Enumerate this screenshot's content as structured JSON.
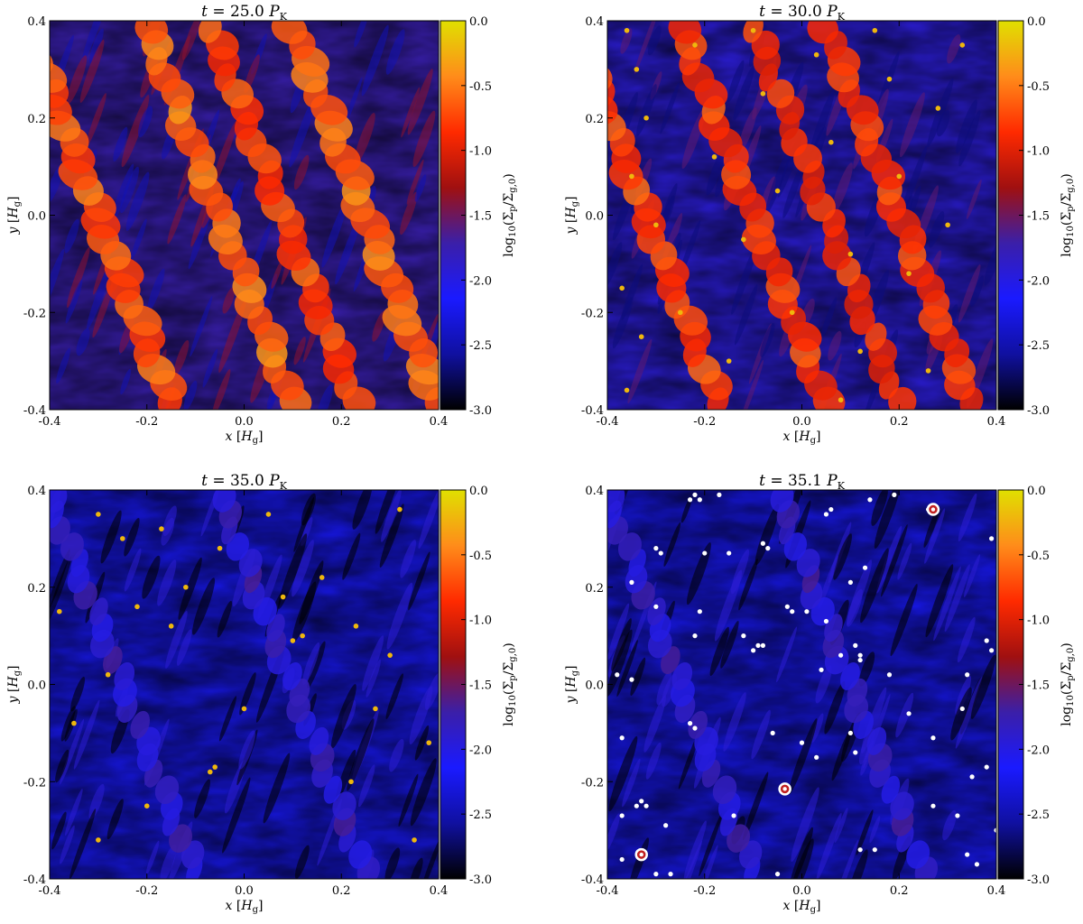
{
  "figure": {
    "colormap": [
      "#000000",
      "#1010a0",
      "#1a1aff",
      "#3b1fa8",
      "#a01010",
      "#ff2a00",
      "#ff8c1a",
      "#e0e000"
    ],
    "colors": {
      "particle_clump": "#ffffff",
      "hill_ring": "#c02020",
      "frame": "#000000"
    }
  },
  "chart_data": [
    {
      "type": "heatmap",
      "title": "t = 25.0 P_K",
      "title_parts": {
        "var": "t",
        "eq": " = 25.0 ",
        "sym": "P",
        "sub": "K"
      },
      "xlabel": "x [H_g]",
      "ylabel": "y [H_g]",
      "xlim": [
        -0.4,
        0.4
      ],
      "ylim": [
        -0.4,
        0.4
      ],
      "x_ticks": [
        -0.4,
        -0.2,
        0.0,
        0.2,
        0.4
      ],
      "y_ticks": [
        -0.4,
        -0.2,
        0.0,
        0.2,
        0.4
      ],
      "x_tick_labels": [
        "-0.4",
        "-0.2",
        "0.0",
        "0.2",
        "0.4"
      ],
      "y_tick_labels": [
        "-0.4",
        "-0.2",
        "0.0",
        "0.2",
        "0.4"
      ],
      "colorbar": {
        "label": "log10(Σp/Σg,0)",
        "range": [
          -3.0,
          0.0
        ],
        "ticks": [
          0.0,
          -0.5,
          -1.0,
          -1.5,
          -2.0,
          -2.5,
          -3.0
        ],
        "tick_labels": [
          "0.0",
          "-0.5",
          "-1.0",
          "-1.5",
          "-2.0",
          "-2.5",
          "-3.0"
        ]
      },
      "background_level": 0.42,
      "filaments": [
        {
          "x": -0.3,
          "slope": 2.6,
          "width": 0.035,
          "level": 0.85
        },
        {
          "x": -0.05,
          "slope": 2.6,
          "width": 0.03,
          "level": 0.88
        },
        {
          "x": 0.08,
          "slope": 2.6,
          "width": 0.03,
          "level": 0.82
        },
        {
          "x": 0.25,
          "slope": 2.6,
          "width": 0.035,
          "level": 0.88
        }
      ],
      "clumps": [],
      "white_points": false,
      "hill_circles": []
    },
    {
      "type": "heatmap",
      "title": "t = 30.0 P_K",
      "title_parts": {
        "var": "t",
        "eq": " = 30.0 ",
        "sym": "P",
        "sub": "K"
      },
      "xlabel": "x [H_g]",
      "ylabel": "y [H_g]",
      "xlim": [
        -0.4,
        0.4
      ],
      "ylim": [
        -0.4,
        0.4
      ],
      "x_ticks": [
        -0.4,
        -0.2,
        0.0,
        0.2,
        0.4
      ],
      "y_ticks": [
        -0.4,
        -0.2,
        0.0,
        0.2,
        0.4
      ],
      "x_tick_labels": [
        "-0.4",
        "-0.2",
        "0.0",
        "0.2",
        "0.4"
      ],
      "y_tick_labels": [
        "-0.4",
        "-0.2",
        "0.0",
        "0.2",
        "0.4"
      ],
      "colorbar": {
        "label": "log10(Σp/Σg,0)",
        "range": [
          -3.0,
          0.0
        ],
        "ticks": [
          0.0,
          -0.5,
          -1.0,
          -1.5,
          -2.0,
          -2.5,
          -3.0
        ],
        "tick_labels": [
          "0.0",
          "-0.5",
          "-1.0",
          "-1.5",
          "-2.0",
          "-2.5",
          "-3.0"
        ]
      },
      "background_level": 0.36,
      "filaments": [
        {
          "x": -0.32,
          "slope": 2.6,
          "width": 0.03,
          "level": 0.82
        },
        {
          "x": -0.1,
          "slope": 2.6,
          "width": 0.03,
          "level": 0.8
        },
        {
          "x": 0.05,
          "slope": 2.6,
          "width": 0.025,
          "level": 0.78
        },
        {
          "x": 0.2,
          "slope": 2.6,
          "width": 0.03,
          "level": 0.8
        }
      ],
      "clumps": [
        [
          -0.36,
          0.38
        ],
        [
          -0.34,
          0.3
        ],
        [
          -0.32,
          0.2
        ],
        [
          -0.35,
          0.08
        ],
        [
          -0.3,
          -0.02
        ],
        [
          -0.37,
          -0.15
        ],
        [
          -0.33,
          -0.25
        ],
        [
          -0.36,
          -0.36
        ],
        [
          -0.22,
          0.35
        ],
        [
          -0.18,
          0.12
        ],
        [
          -0.12,
          -0.05
        ],
        [
          -0.15,
          -0.3
        ],
        [
          -0.08,
          0.25
        ],
        [
          -0.05,
          0.05
        ],
        [
          -0.02,
          -0.2
        ],
        [
          0.03,
          0.33
        ],
        [
          0.06,
          0.15
        ],
        [
          0.1,
          -0.08
        ],
        [
          0.12,
          -0.28
        ],
        [
          0.18,
          0.28
        ],
        [
          0.2,
          0.08
        ],
        [
          0.22,
          -0.12
        ],
        [
          0.26,
          -0.32
        ],
        [
          0.28,
          0.22
        ],
        [
          0.3,
          -0.02
        ],
        [
          0.15,
          0.38
        ],
        [
          -0.25,
          -0.2
        ],
        [
          0.08,
          -0.38
        ],
        [
          -0.1,
          0.38
        ],
        [
          0.33,
          0.35
        ]
      ],
      "white_points": false,
      "hill_circles": []
    },
    {
      "type": "heatmap",
      "title": "t = 35.0 P_K",
      "title_parts": {
        "var": "t",
        "eq": " = 35.0 ",
        "sym": "P",
        "sub": "K"
      },
      "xlabel": "x [H_g]",
      "ylabel": "y [H_g]",
      "xlim": [
        -0.4,
        0.4
      ],
      "ylim": [
        -0.4,
        0.4
      ],
      "x_ticks": [
        -0.4,
        -0.2,
        0.0,
        0.2,
        0.4
      ],
      "y_ticks": [
        -0.4,
        -0.2,
        0.0,
        0.2,
        0.4
      ],
      "x_tick_labels": [
        "-0.4",
        "-0.2",
        "0.0",
        "0.2",
        "0.4"
      ],
      "y_tick_labels": [
        "-0.4",
        "-0.2",
        "0.0",
        "0.2",
        "0.4"
      ],
      "colorbar": {
        "label": "log10(Σp/Σg,0)",
        "range": [
          -3.0,
          0.0
        ],
        "ticks": [
          0.0,
          -0.5,
          -1.0,
          -1.5,
          -2.0,
          -2.5,
          -3.0
        ],
        "tick_labels": [
          "0.0",
          "-0.5",
          "-1.0",
          "-1.5",
          "-2.0",
          "-2.5",
          "-3.0"
        ]
      },
      "background_level": 0.24,
      "filaments": [
        {
          "x": -0.25,
          "slope": 2.6,
          "width": 0.02,
          "level": 0.45
        },
        {
          "x": 0.1,
          "slope": 2.6,
          "width": 0.02,
          "level": 0.45
        }
      ],
      "clumps": [
        [
          -0.3,
          0.35
        ],
        [
          -0.25,
          0.3
        ],
        [
          -0.17,
          0.32
        ],
        [
          -0.22,
          0.16
        ],
        [
          -0.15,
          0.12
        ],
        [
          -0.05,
          0.28
        ],
        [
          0.12,
          0.1
        ],
        [
          0.1,
          0.09
        ],
        [
          -0.07,
          -0.18
        ],
        [
          -0.06,
          -0.17
        ],
        [
          0.23,
          0.12
        ],
        [
          0.3,
          0.06
        ],
        [
          0.38,
          -0.12
        ],
        [
          0.35,
          -0.32
        ],
        [
          -0.35,
          -0.08
        ],
        [
          -0.3,
          -0.32
        ],
        [
          -0.12,
          0.2
        ],
        [
          0.0,
          -0.05
        ],
        [
          0.16,
          0.22
        ],
        [
          0.27,
          -0.05
        ],
        [
          -0.38,
          0.15
        ],
        [
          0.05,
          0.35
        ],
        [
          -0.2,
          -0.25
        ],
        [
          0.22,
          -0.2
        ],
        [
          0.32,
          0.36
        ],
        [
          -0.28,
          0.02
        ],
        [
          0.08,
          0.18
        ]
      ],
      "white_points": false,
      "hill_circles": []
    },
    {
      "type": "heatmap",
      "title": "t = 35.1 P_K",
      "title_parts": {
        "var": "t",
        "eq": " = 35.1 ",
        "sym": "P",
        "sub": "K"
      },
      "xlabel": "x [H_g]",
      "ylabel": "y [H_g]",
      "xlim": [
        -0.4,
        0.4
      ],
      "ylim": [
        -0.4,
        0.4
      ],
      "x_ticks": [
        -0.4,
        -0.2,
        0.0,
        0.2,
        0.4
      ],
      "y_ticks": [
        -0.4,
        -0.2,
        0.0,
        0.2,
        0.4
      ],
      "x_tick_labels": [
        "-0.4",
        "-0.2",
        "0.0",
        "0.2",
        "0.4"
      ],
      "y_tick_labels": [
        "-0.4",
        "-0.2",
        "0.0",
        "0.2",
        "0.4"
      ],
      "colorbar": {
        "label": "log10(Σp/Σg,0)",
        "range": [
          -3.0,
          0.0
        ],
        "ticks": [
          0.0,
          -0.5,
          -1.0,
          -1.5,
          -2.0,
          -2.5,
          -3.0
        ],
        "tick_labels": [
          "0.0",
          "-0.5",
          "-1.0",
          "-1.5",
          "-2.0",
          "-2.5",
          "-3.0"
        ]
      },
      "background_level": 0.24,
      "filaments": [
        {
          "x": -0.25,
          "slope": 2.6,
          "width": 0.02,
          "level": 0.45
        },
        {
          "x": 0.1,
          "slope": 2.6,
          "width": 0.02,
          "level": 0.45
        }
      ],
      "clumps": [
        [
          -0.22,
          0.39
        ],
        [
          -0.21,
          0.38
        ],
        [
          -0.23,
          0.38
        ],
        [
          -0.17,
          0.39
        ],
        [
          -0.3,
          0.28
        ],
        [
          -0.29,
          0.27
        ],
        [
          -0.2,
          0.27
        ],
        [
          -0.15,
          0.27
        ],
        [
          -0.08,
          0.29
        ],
        [
          -0.07,
          0.28
        ],
        [
          0.05,
          0.35
        ],
        [
          0.06,
          0.36
        ],
        [
          0.14,
          0.38
        ],
        [
          0.19,
          0.39
        ],
        [
          -0.35,
          0.21
        ],
        [
          -0.3,
          0.16
        ],
        [
          -0.21,
          0.15
        ],
        [
          -0.03,
          0.16
        ],
        [
          -0.02,
          0.15
        ],
        [
          0.01,
          0.15
        ],
        [
          0.05,
          0.13
        ],
        [
          0.1,
          0.21
        ],
        [
          0.13,
          0.24
        ],
        [
          -0.38,
          0.02
        ],
        [
          -0.35,
          0.01
        ],
        [
          -0.22,
          0.1
        ],
        [
          -0.12,
          0.1
        ],
        [
          -0.09,
          0.08
        ],
        [
          -0.08,
          0.08
        ],
        [
          -0.1,
          0.07
        ],
        [
          0.08,
          0.06
        ],
        [
          0.04,
          0.03
        ],
        [
          0.11,
          0.08
        ],
        [
          0.12,
          0.05
        ],
        [
          0.12,
          0.06
        ],
        [
          0.18,
          0.02
        ],
        [
          0.34,
          0.02
        ],
        [
          0.38,
          0.09
        ],
        [
          0.39,
          0.07
        ],
        [
          -0.37,
          -0.11
        ],
        [
          -0.23,
          -0.08
        ],
        [
          -0.22,
          -0.09
        ],
        [
          -0.06,
          -0.1
        ],
        [
          0.0,
          -0.12
        ],
        [
          0.03,
          -0.15
        ],
        [
          0.1,
          -0.1
        ],
        [
          0.11,
          -0.14
        ],
        [
          0.22,
          -0.06
        ],
        [
          0.27,
          -0.11
        ],
        [
          0.33,
          -0.05
        ],
        [
          0.38,
          -0.17
        ],
        [
          0.35,
          -0.19
        ],
        [
          -0.37,
          -0.27
        ],
        [
          -0.34,
          -0.25
        ],
        [
          -0.33,
          -0.24
        ],
        [
          -0.32,
          -0.25
        ],
        [
          -0.28,
          -0.29
        ],
        [
          -0.14,
          -0.27
        ],
        [
          0.27,
          -0.25
        ],
        [
          0.32,
          -0.27
        ],
        [
          -0.37,
          -0.36
        ],
        [
          -0.3,
          -0.39
        ],
        [
          -0.27,
          -0.39
        ],
        [
          -0.05,
          -0.39
        ],
        [
          0.12,
          -0.34
        ],
        [
          0.15,
          -0.34
        ],
        [
          0.34,
          -0.35
        ],
        [
          0.36,
          -0.37
        ],
        [
          0.4,
          -0.3
        ],
        [
          0.39,
          0.3
        ],
        [
          -0.04,
          -0.22
        ],
        [
          0.26,
          0.36
        ]
      ],
      "white_points": true,
      "hill_circles": [
        [
          0.27,
          0.36
        ],
        [
          -0.035,
          -0.215
        ],
        [
          -0.33,
          -0.35
        ]
      ]
    }
  ]
}
